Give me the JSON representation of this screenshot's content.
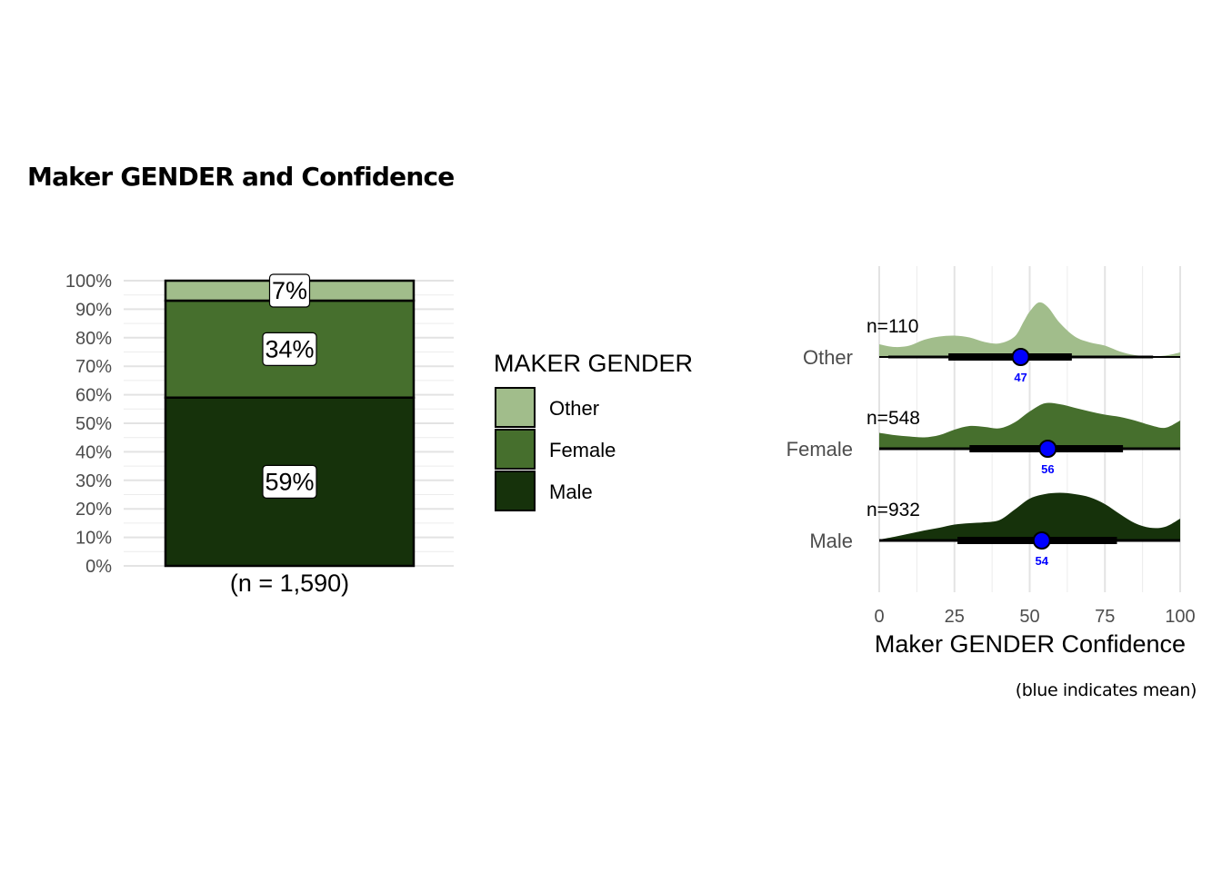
{
  "title": "Maker GENDER and Confidence",
  "caption": "(blue indicates mean)",
  "colors": {
    "Other": "#a1bd8b",
    "Female": "#466f2d",
    "Male": "#16320b",
    "mean_point": "#0000ff"
  },
  "chart_data": [
    {
      "type": "bar",
      "subtype": "stacked-100",
      "categories": [
        "(n = 1,590)"
      ],
      "series": [
        {
          "name": "Male",
          "values": [
            59
          ],
          "label": "59%"
        },
        {
          "name": "Female",
          "values": [
            34
          ],
          "label": "34%"
        },
        {
          "name": "Other",
          "values": [
            7
          ],
          "label": "7%"
        }
      ],
      "ylim": [
        0,
        100
      ],
      "y_ticks": [
        "0%",
        "10%",
        "20%",
        "30%",
        "40%",
        "50%",
        "60%",
        "70%",
        "80%",
        "90%",
        "100%"
      ],
      "legend": {
        "title": "MAKER GENDER",
        "position": "right",
        "entries": [
          "Other",
          "Female",
          "Male"
        ]
      },
      "grid": true
    },
    {
      "type": "area",
      "subtype": "ridgeline-density-with-interval",
      "xlabel": "Maker GENDER Confidence",
      "xlim": [
        0,
        100
      ],
      "x_ticks": [
        "0",
        "25",
        "50",
        "75",
        "100"
      ],
      "categories": [
        "Other",
        "Female",
        "Male"
      ],
      "series": [
        {
          "name": "Other",
          "n_label": "n=110",
          "mean": 47,
          "interval_thick": [
            23,
            64
          ],
          "interval_thin": [
            3,
            91
          ],
          "density_x": [
            0,
            5,
            10,
            15,
            20,
            25,
            30,
            35,
            40,
            45,
            48,
            50,
            53,
            56,
            60,
            65,
            70,
            75,
            80,
            85,
            90,
            95,
            100
          ],
          "density_y": [
            0.28,
            0.22,
            0.25,
            0.38,
            0.45,
            0.47,
            0.43,
            0.33,
            0.3,
            0.45,
            0.78,
            1.0,
            1.2,
            1.1,
            0.75,
            0.45,
            0.32,
            0.25,
            0.12,
            0.04,
            0.02,
            0.03,
            0.1
          ]
        },
        {
          "name": "Female",
          "n_label": "n=548",
          "mean": 56,
          "interval_thick": [
            30,
            81
          ],
          "interval_thin": [
            0,
            100
          ],
          "density_x": [
            0,
            5,
            10,
            15,
            20,
            25,
            30,
            35,
            40,
            45,
            50,
            55,
            60,
            65,
            70,
            75,
            80,
            85,
            90,
            95,
            100
          ],
          "density_y": [
            0.35,
            0.3,
            0.27,
            0.25,
            0.3,
            0.42,
            0.5,
            0.48,
            0.45,
            0.58,
            0.82,
            1.0,
            0.98,
            0.9,
            0.82,
            0.75,
            0.7,
            0.62,
            0.52,
            0.46,
            0.62
          ]
        },
        {
          "name": "Male",
          "n_label": "n=932",
          "mean": 54,
          "interval_thick": [
            26,
            79
          ],
          "interval_thin": [
            0,
            100
          ],
          "density_x": [
            0,
            5,
            10,
            15,
            20,
            25,
            30,
            35,
            40,
            45,
            50,
            55,
            60,
            65,
            70,
            75,
            80,
            85,
            90,
            95,
            100
          ],
          "density_y": [
            0.02,
            0.08,
            0.15,
            0.22,
            0.28,
            0.35,
            0.38,
            0.4,
            0.45,
            0.68,
            0.92,
            1.02,
            1.05,
            1.02,
            0.95,
            0.8,
            0.58,
            0.38,
            0.28,
            0.3,
            0.48
          ]
        }
      ],
      "grid": true
    }
  ]
}
